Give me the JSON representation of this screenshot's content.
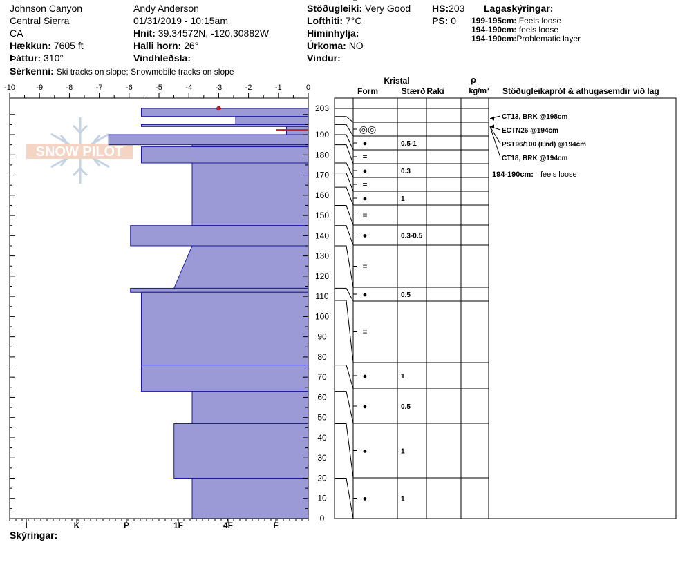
{
  "header": {
    "location": "Johnson Canyon",
    "region": "Central Sierra",
    "state": "CA",
    "elevation_label": "Hækkun:",
    "elevation_value": "7605 ft",
    "aspect_label": "Þáttur:",
    "aspect_value": "310°",
    "features_label": "Sérkenni:",
    "features_value": "Ski tracks on slope; Snowmobile tracks on slope",
    "observer": "Andy Anderson",
    "datetime": "01/31/2019 - 10:15am",
    "coords_label": "Hnit:",
    "coords_value": "39.34572N, -120.30882W",
    "slope_label": "Halli horn:",
    "slope_value": "26°",
    "wind_loading_label": "Vindhleðsla:",
    "wind_loading_value": "",
    "stability_label": "Stöðugleiki:",
    "stability_value": "Very Good",
    "air_temp_label": "Lofthiti:",
    "air_temp_value": "7°C",
    "sky_label": "Himinhylja:",
    "sky_value": "",
    "precip_label": "Úrkoma:",
    "precip_value": "NO",
    "wind_label": "Vindur:",
    "wind_value": "",
    "hs_label": "HS:",
    "hs_value": "203",
    "ps_label": "PS:",
    "ps_value": "0",
    "layer_notes_title": "Lagaskýringar:",
    "layer_notes": [
      {
        "range": "199-195cm:",
        "text": "Feels loose"
      },
      {
        "range": "194-190cm:",
        "text": "feels loose"
      },
      {
        "range": "194-190cm:",
        "text": "Problematic layer"
      }
    ],
    "footer_label": "Skýringar:"
  },
  "logo_text": "SNOW PILOT",
  "chart_data": {
    "type": "bar",
    "title": "",
    "temp_axis": {
      "ticks": [
        "-10",
        "-9",
        "-8",
        "-7",
        "-6",
        "-5",
        "-4",
        "-3",
        "-2",
        "-1",
        "0"
      ],
      "range": [
        -10,
        0
      ]
    },
    "hardness_axis": {
      "labels": [
        "I",
        "K",
        "P",
        "1F",
        "4F",
        "F"
      ]
    },
    "height_axis": {
      "range": [
        0,
        203
      ],
      "ticks": [
        "0",
        "10",
        "20",
        "30",
        "40",
        "50",
        "60",
        "70",
        "80",
        "90",
        "100",
        "110",
        "120",
        "130",
        "140",
        "150",
        "160",
        "170",
        "180",
        "190",
        "203"
      ]
    },
    "hardness_layers": [
      {
        "top": 203,
        "bottom": 199,
        "hardness": 4.6
      },
      {
        "top": 199,
        "bottom": 195,
        "hardness": 2.0
      },
      {
        "top": 195,
        "bottom": 194,
        "hardness": 4.6
      },
      {
        "top": 194,
        "bottom": 190,
        "hardness": 0.6
      },
      {
        "top": 190,
        "bottom": 185,
        "hardness": 5.5
      },
      {
        "top": 185,
        "bottom": 184,
        "hardness": 3.2
      },
      {
        "top": 184,
        "bottom": 176,
        "hardness": 4.6
      },
      {
        "top": 176,
        "bottom": 145,
        "hardness": 3.2
      },
      {
        "top": 145,
        "bottom": 135,
        "hardness": 4.9
      },
      {
        "top": 135,
        "bottom": 114,
        "hardness_top": 3.2,
        "hardness_bottom": 3.7
      },
      {
        "top": 114,
        "bottom": 112,
        "hardness": 4.9
      },
      {
        "top": 112,
        "bottom": 76,
        "hardness": 4.6
      },
      {
        "top": 76,
        "bottom": 63,
        "hardness": 4.6
      },
      {
        "top": 63,
        "bottom": 47,
        "hardness": 3.2
      },
      {
        "top": 47,
        "bottom": 20,
        "hardness": 3.7
      },
      {
        "top": 20,
        "bottom": 0,
        "hardness": 3.2
      }
    ],
    "temperature_points": [
      {
        "height": 203,
        "temp": -3.0
      }
    ],
    "problem_layer": {
      "top": 194,
      "bottom": 190
    }
  },
  "table": {
    "crystal_header": "Kristal",
    "form_header": "Form",
    "size_header": "Stærð",
    "moisture_header": "Raki",
    "density_header": "ρ",
    "density_unit": "kg/m³",
    "tests_header": "Stöðugleikapróf & athugasemdir við lag",
    "rows": [
      {
        "top": 203,
        "bottom": 199,
        "form": "",
        "size": ""
      },
      {
        "top": 199,
        "bottom": 195,
        "form": "◎◎",
        "size": ""
      },
      {
        "top": 195,
        "bottom": 190,
        "form": "●",
        "size": "0.5-1"
      },
      {
        "top": 190,
        "bottom": 185,
        "form": "=",
        "size": ""
      },
      {
        "top": 185,
        "bottom": 176,
        "form": "●",
        "size": "0.3"
      },
      {
        "top": 176,
        "bottom": 171,
        "form": "=",
        "size": ""
      },
      {
        "top": 171,
        "bottom": 164,
        "form": "●",
        "size": "1"
      },
      {
        "top": 164,
        "bottom": 155,
        "form": "=",
        "size": ""
      },
      {
        "top": 155,
        "bottom": 145,
        "form": "●",
        "size": "0.3-0.5"
      },
      {
        "top": 145,
        "bottom": 135,
        "form": "=",
        "size": ""
      },
      {
        "top": 135,
        "bottom": 114,
        "form": "●",
        "size": "0.5"
      },
      {
        "top": 114,
        "bottom": 108,
        "form": "=",
        "size": ""
      },
      {
        "top": 108,
        "bottom": 76,
        "form": "●",
        "size": "1"
      },
      {
        "top": 76,
        "bottom": 63,
        "form": "●",
        "size": "0.5"
      },
      {
        "top": 63,
        "bottom": 47,
        "form": "●",
        "size": "1"
      },
      {
        "top": 47,
        "bottom": 20,
        "form": "●",
        "size": "1"
      },
      {
        "top": 20,
        "bottom": 0,
        "form": "●",
        "size": "1"
      }
    ],
    "tests": [
      {
        "text": "CT13, BRK @198cm",
        "height": 198
      },
      {
        "text": "ECTN26 @194cm",
        "height": 194
      },
      {
        "text": "PST96/100 (End) @194cm",
        "height": 194
      },
      {
        "text": "CT18, BRK @194cm",
        "height": 194
      }
    ],
    "comment_range": "194-190cm:",
    "comment_text": "feels loose"
  }
}
